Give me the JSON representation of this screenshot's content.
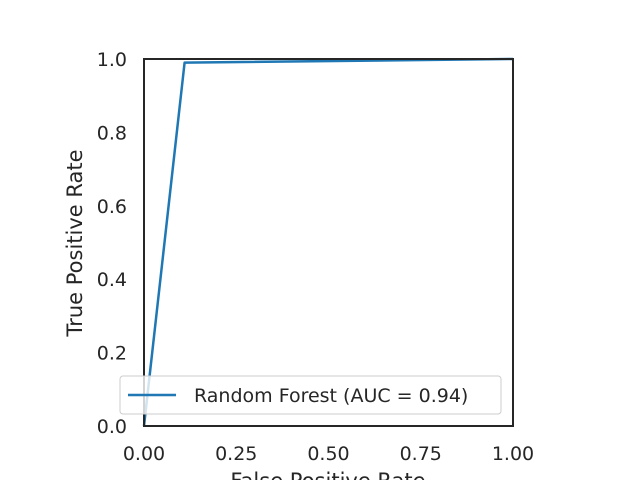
{
  "chart_data": {
    "type": "line",
    "title": "",
    "xlabel": "False Positive Rate",
    "ylabel": "True Positive Rate",
    "xlim": [
      0.0,
      1.0
    ],
    "ylim": [
      0.0,
      1.0
    ],
    "x_ticks": [
      "0.00",
      "0.25",
      "0.50",
      "0.75",
      "1.00"
    ],
    "y_ticks": [
      "0.0",
      "0.2",
      "0.4",
      "0.6",
      "0.8",
      "1.0"
    ],
    "grid": false,
    "legend_position": "lower-right",
    "series": [
      {
        "name": "Random Forest (AUC = 0.94)",
        "color": "#1f77b4",
        "x": [
          0.0,
          0.0,
          0.11,
          1.0
        ],
        "y": [
          0.0,
          0.0,
          0.99,
          1.0
        ]
      }
    ]
  }
}
